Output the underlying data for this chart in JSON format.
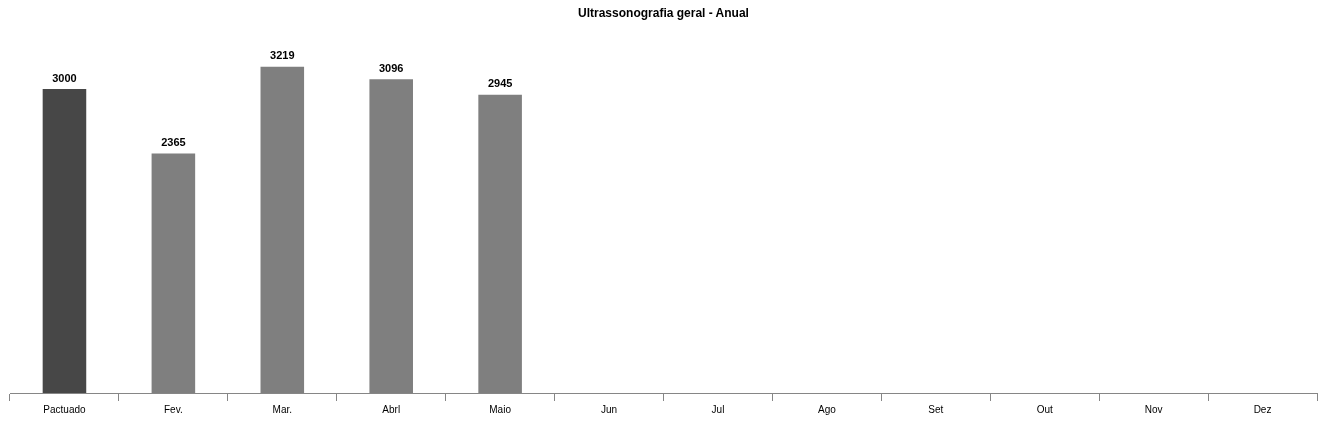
{
  "chart_data": {
    "type": "bar",
    "title": "Ultrassonografia geral - Anual",
    "categories": [
      "Pactuado",
      "Fev.",
      "Mar.",
      "Abrl",
      "Maio",
      "Jun",
      "Jul",
      "Ago",
      "Set",
      "Out",
      "Nov",
      "Dez"
    ],
    "values": [
      3000,
      2365,
      3219,
      3096,
      2945,
      null,
      null,
      null,
      null,
      null,
      null,
      null
    ],
    "colors": [
      "#474747",
      "#7f7f7f",
      "#7f7f7f",
      "#7f7f7f",
      "#7f7f7f",
      "#7f7f7f",
      "#7f7f7f",
      "#7f7f7f",
      "#7f7f7f",
      "#7f7f7f",
      "#7f7f7f",
      "#7f7f7f"
    ],
    "data_labels": true,
    "grid": false,
    "legend": false
  }
}
